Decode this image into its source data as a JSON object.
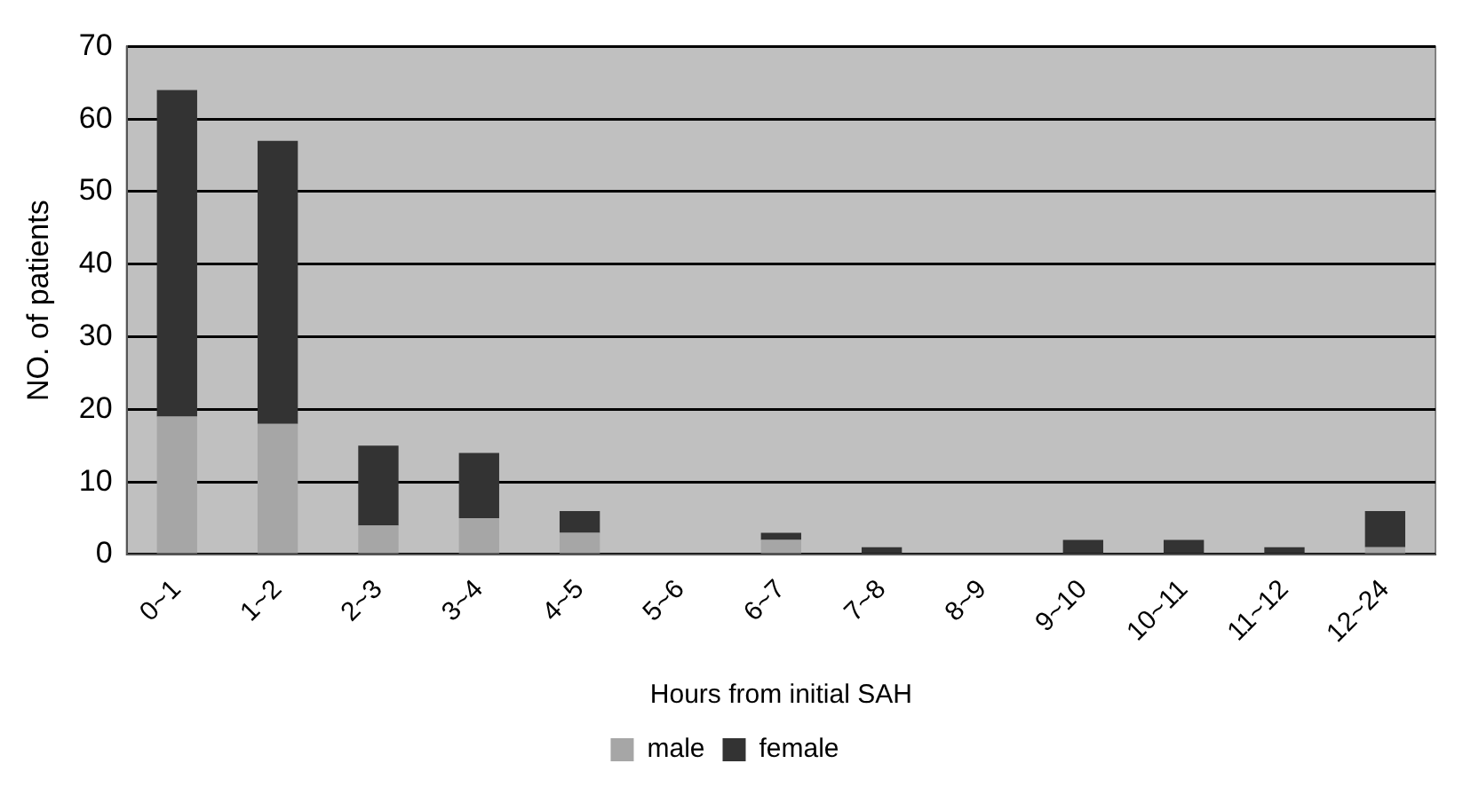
{
  "chart_data": {
    "type": "bar",
    "stacked": true,
    "xlabel": "Hours from initial SAH",
    "ylabel": "NO. of patients",
    "categories": [
      "0~1",
      "1~2",
      "2~3",
      "3~4",
      "4~5",
      "5~6",
      "6~7",
      "7~8",
      "8~9",
      "9~10",
      "10~11",
      "11~12",
      "12~24"
    ],
    "series": [
      {
        "name": "male",
        "color": "#a6a6a6",
        "values": [
          19,
          18,
          4,
          5,
          3,
          0,
          2,
          0,
          0,
          0,
          0,
          0,
          1
        ]
      },
      {
        "name": "female",
        "color": "#333333",
        "values": [
          45,
          39,
          11,
          9,
          3,
          0,
          1,
          1,
          0,
          2,
          2,
          1,
          5
        ]
      }
    ],
    "ylim": [
      0,
      70
    ],
    "yticks": [
      0,
      10,
      20,
      30,
      40,
      50,
      60,
      70
    ],
    "grid": "y",
    "legend": "bottom"
  }
}
